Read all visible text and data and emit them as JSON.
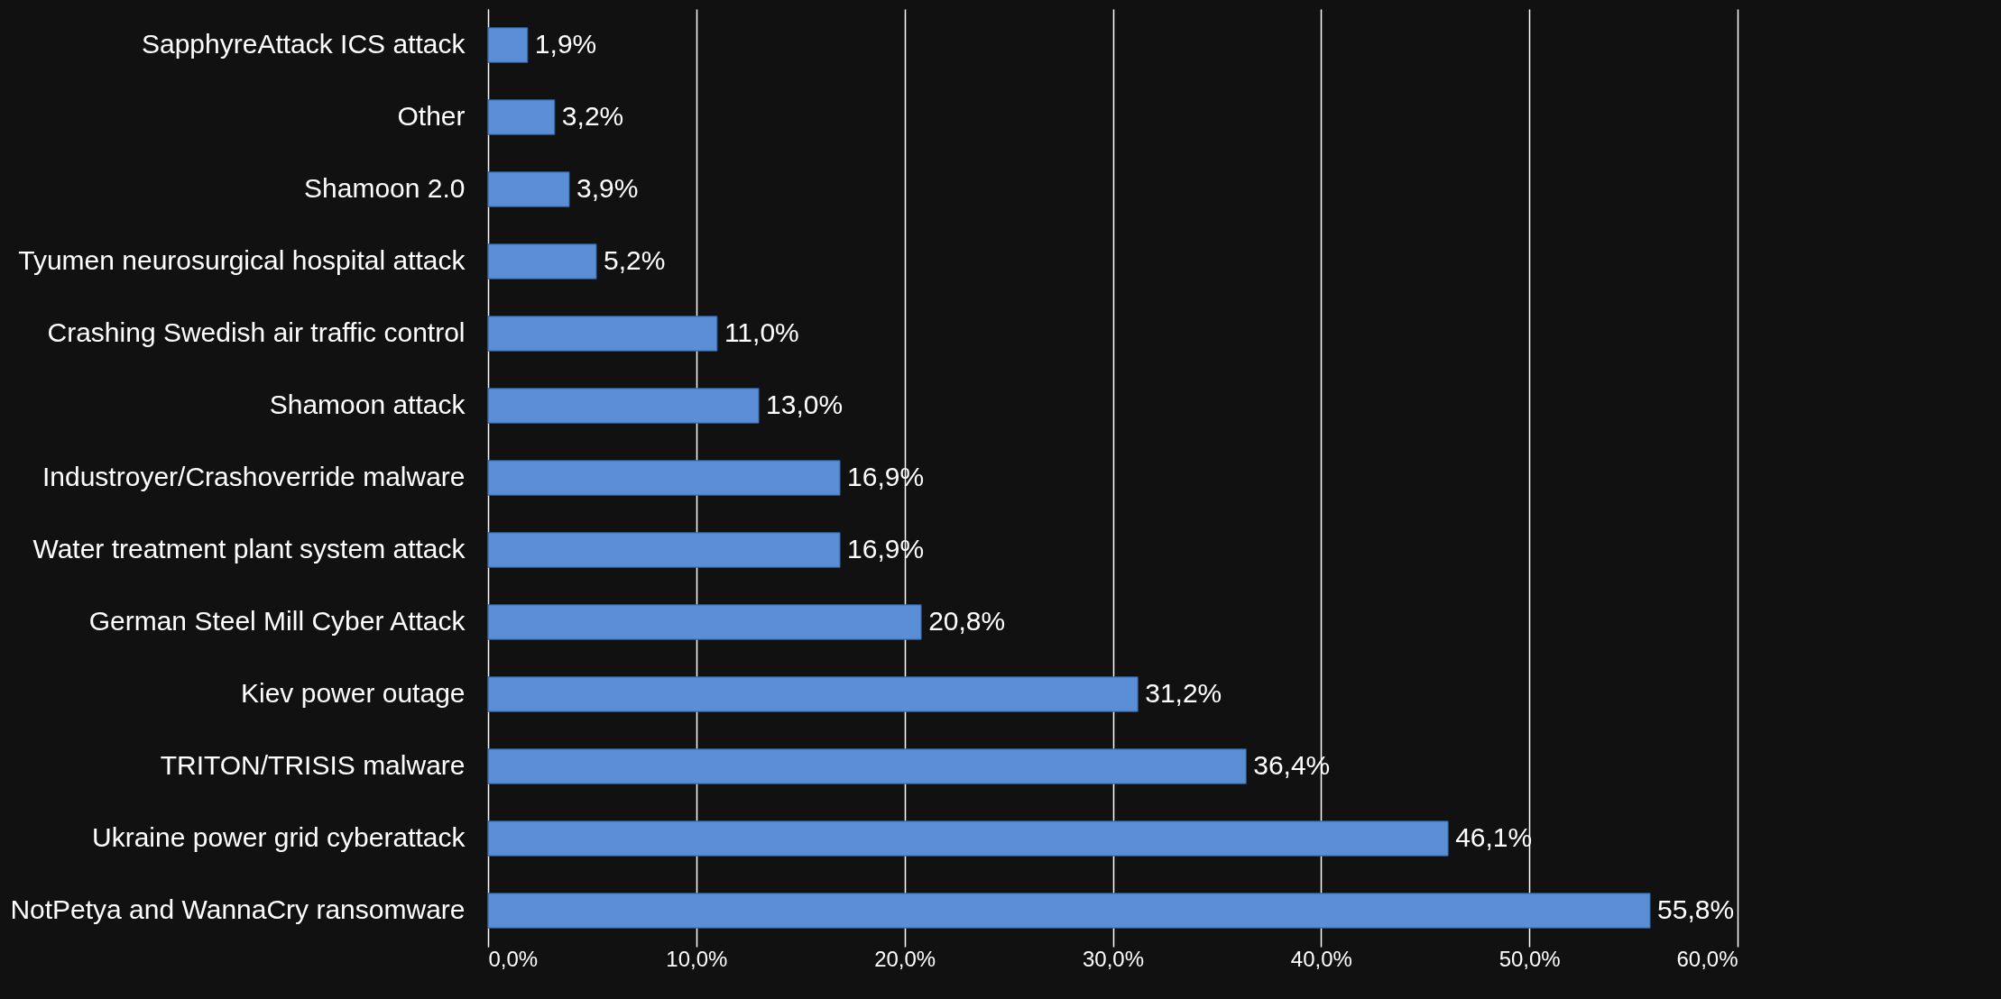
{
  "chart_data": {
    "type": "bar",
    "orientation": "horizontal",
    "categories": [
      "SapphyreAttack ICS attack",
      "Other",
      "Shamoon 2.0",
      "Tyumen neurosurgical hospital attack",
      "Crashing Swedish air traffic control",
      "Shamoon attack",
      "Industroyer/Crashoverride malware",
      "Water treatment plant system attack",
      "German Steel Mill Cyber Attack",
      "Kiev power outage",
      "TRITON/TRISIS malware",
      "Ukraine power grid cyberattack",
      "NotPetya and WannaCry ransomware"
    ],
    "values": [
      1.9,
      3.2,
      3.9,
      5.2,
      11.0,
      13.0,
      16.9,
      16.9,
      20.8,
      31.2,
      36.4,
      46.1,
      55.8
    ],
    "value_labels": [
      "1,9%",
      "3,2%",
      "3,9%",
      "5,2%",
      "11,0%",
      "13,0%",
      "16,9%",
      "16,9%",
      "20,8%",
      "31,2%",
      "36,4%",
      "46,1%",
      "55,8%"
    ],
    "color": "#5a8ed6",
    "xlim": [
      0,
      60
    ],
    "xticks": [
      {
        "value": 0,
        "label": "0,0%"
      },
      {
        "value": 10,
        "label": "10,0%"
      },
      {
        "value": 20,
        "label": "20,0%"
      },
      {
        "value": 30,
        "label": "30,0%"
      },
      {
        "value": 40,
        "label": "40,0%"
      },
      {
        "value": 50,
        "label": "50,0%"
      },
      {
        "value": 60,
        "label": "60,0%"
      }
    ],
    "grid": "x"
  }
}
